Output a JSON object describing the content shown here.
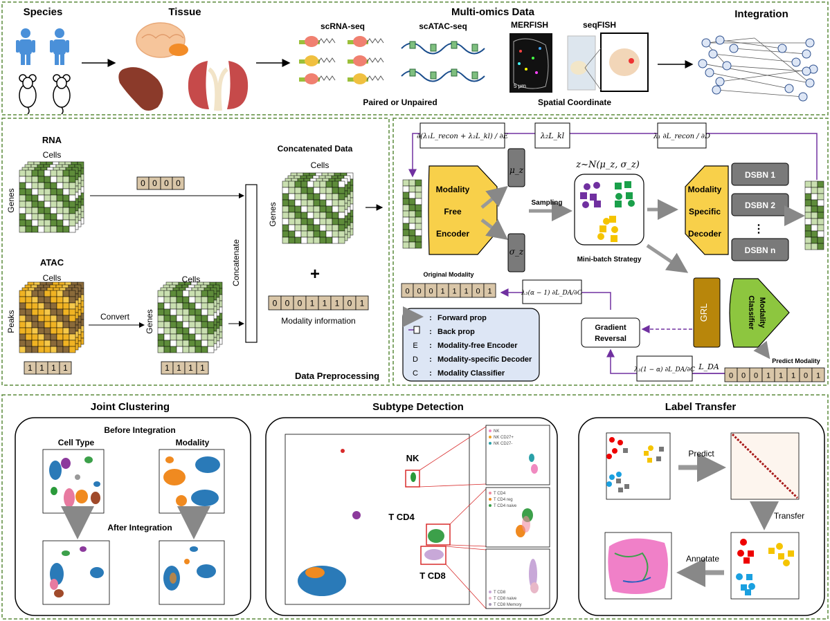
{
  "top": {
    "species": "Species",
    "tissue": "Tissue",
    "multiomics": "Multi-omics Data",
    "integration": "Integration",
    "scrna": "scRNA-seq",
    "scatac": "scATAC-seq",
    "merfish": "MERFISH",
    "seqfish": "seqFISH",
    "scale": "5 μm",
    "paired": "Paired or Unpaired",
    "spatial": "Spatial Coordinate"
  },
  "prep": {
    "rna": "RNA",
    "cells": "Cells",
    "genes": "Genes",
    "atac": "ATAC",
    "peaks": "Peaks",
    "convert": "Convert",
    "concatenate": "Concatenate",
    "concat_data": "Concatenated Data",
    "plus": "+",
    "modality_info": "Modality information",
    "title": "Data Preprocessing",
    "rna_vec": [
      "0",
      "0",
      "0",
      "0"
    ],
    "atac_vec": [
      "1",
      "1",
      "1",
      "1"
    ],
    "modality_vec": [
      "0",
      "0",
      "0",
      "1",
      "1",
      "1",
      "0",
      "1"
    ]
  },
  "model": {
    "grad_e": "∂(λ₁L_recon + λ₂L_kl) / ∂E",
    "lambda_kl": "λ₂L_kl",
    "grad_d": "λ₁ ∂L_recon / ∂D",
    "encoder": [
      "Modality",
      "Free",
      "Encoder"
    ],
    "mu": "μ_z",
    "sigma": "σ_z",
    "sampling": "Sampling",
    "z_eq": "z~N(μ_z, σ_z)",
    "minibatch": "Mini-batch Strategy",
    "decoder": [
      "Modality",
      "Specific",
      "Decoder"
    ],
    "dsbn": [
      "DSBN 1",
      "DSBN 2",
      "⋮",
      "DSBN n"
    ],
    "original_modality": "Original Modality",
    "orig_vec": [
      "0",
      "0",
      "0",
      "1",
      "1",
      "1",
      "0",
      "1"
    ],
    "grad_c1": "λ₃(α − 1) ∂L_DA/∂C",
    "grl": "GRL",
    "classifier": [
      "Modality",
      "Classifier"
    ],
    "gradient_reversal": [
      "Gradient",
      "Reversal"
    ],
    "grad_c2": "λ₃(1 − α) ∂L_DA/∂C",
    "lda": "L_DA",
    "predict_modality": "Predict Modality",
    "pred_vec": [
      "0",
      "0",
      "0",
      "1",
      "1",
      "1",
      "0",
      "1"
    ],
    "legend": [
      {
        "key": "",
        "text": "Forward prop"
      },
      {
        "key": "",
        "text": "Back prop"
      },
      {
        "key": "E",
        "text": "Modality-free Encoder"
      },
      {
        "key": "D",
        "text": "Modality-specific Decoder"
      },
      {
        "key": "C",
        "text": "Modality Classifier"
      }
    ]
  },
  "bottom": {
    "joint": "Joint Clustering",
    "before": "Before Integration",
    "cell_type": "Cell Type",
    "modality": "Modality",
    "after": "After Integration",
    "subtype": "Subtype Detection",
    "nk": "NK",
    "tcd4": "T CD4",
    "tcd8": "T CD8",
    "leg_nk": [
      "NK",
      "NK CD27+",
      "NK CD27-"
    ],
    "leg_cd4": [
      "T CD4",
      "T CD4 reg",
      "T CD4 naive"
    ],
    "leg_cd8": [
      "T CD8",
      "T CD8 naive",
      "T CD8 Memory"
    ],
    "label_transfer": "Label Transfer",
    "predict": "Predict",
    "transfer": "Transfer",
    "annotate": "Annotate"
  },
  "colors": {
    "panel_border": "#5a8a3a",
    "encoder": "#f8d04a",
    "grl": "#b8860b",
    "classifier": "#8dc63f",
    "legend_bg": "#dde6f5",
    "vec_cell": "#d9c6a8",
    "purple": "#7030a0",
    "matrix_green": "#5e8c3a",
    "matrix_light": "#c9dfb0",
    "atac_gold": "#f0b323",
    "atac_brown": "#8a6a3a"
  }
}
